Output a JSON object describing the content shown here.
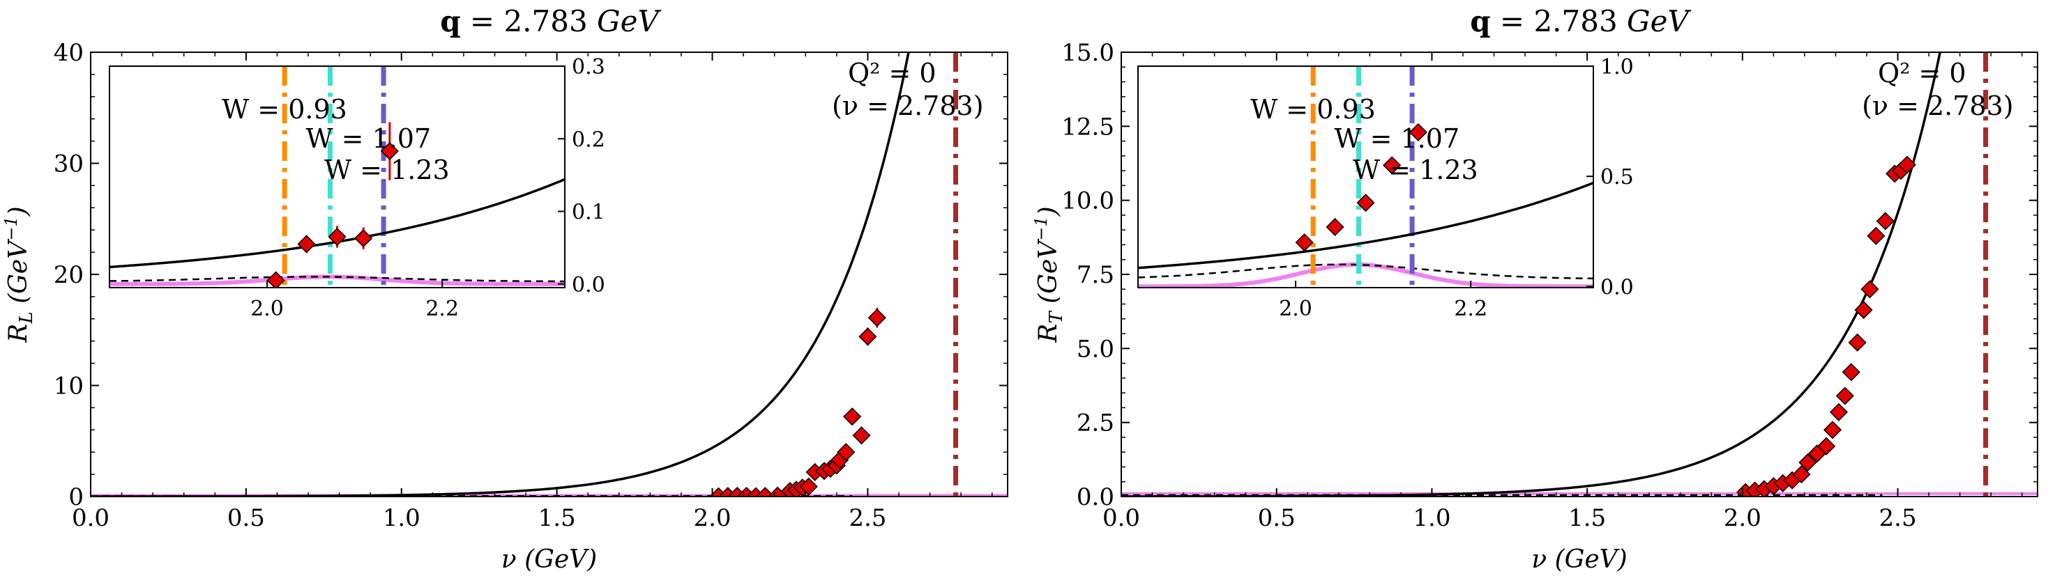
{
  "chart_data": [
    {
      "type": "scatter",
      "panel": "left",
      "title": "q = 2.783 GeV",
      "title_bold": "q",
      "title_rest": " = 2.783 ",
      "title_unit": "GeV",
      "xlabel": "ν (GeV)",
      "ylabel": "R_L (GeV⁻¹)",
      "ylabel_main": "R",
      "ylabel_sub": "L",
      "ylabel_unit": " (GeV",
      "ylabel_sup": "−1",
      "ylabel_close": ")",
      "xlim": [
        0.0,
        2.95
      ],
      "ylim": [
        0,
        40
      ],
      "xticks": [
        "0.0",
        "0.5",
        "1.0",
        "1.5",
        "2.0",
        "2.5"
      ],
      "xtick_values": [
        0.0,
        0.5,
        1.0,
        1.5,
        2.0,
        2.5
      ],
      "yticks": [
        "0",
        "10",
        "20",
        "30",
        "40"
      ],
      "ytick_values": [
        0,
        10,
        20,
        30,
        40
      ],
      "photon_point": {
        "label_line1": "Q² = 0",
        "label_line2": "(ν = 2.783)",
        "x": 2.783,
        "color": "#a52a2a"
      },
      "data_points": {
        "color": "#e00000",
        "x": [
          2.02,
          2.05,
          2.08,
          2.11,
          2.14,
          2.17,
          2.21,
          2.25,
          2.27,
          2.29,
          2.31,
          2.33,
          2.36,
          2.38,
          2.4,
          2.41,
          2.43,
          2.45,
          2.48,
          2.5,
          2.53
        ],
        "y": [
          0.02,
          0.05,
          0.06,
          0.06,
          0.03,
          0.05,
          0.08,
          0.5,
          0.6,
          0.8,
          0.9,
          2.2,
          2.3,
          2.5,
          2.8,
          3.3,
          4.0,
          7.2,
          5.5,
          14.4,
          16.1
        ],
        "err": [
          0.05,
          0.05,
          0.05,
          0.05,
          0.05,
          0.05,
          0.1,
          0.3,
          0.3,
          0.3,
          0.3,
          0.4,
          0.4,
          0.4,
          0.4,
          0.5,
          0.5,
          0.6,
          0.6,
          0.8,
          0.9
        ]
      },
      "curve_total": {
        "color": "#000000",
        "a": 0.004,
        "b": 3.5
      },
      "curve_magenta": {
        "color": "#ee82ee",
        "level": 0.1
      },
      "inset": {
        "xlim": [
          1.82,
          2.34
        ],
        "ylim": [
          -0.005,
          0.3
        ],
        "xticks": [
          "2.0",
          "2.2"
        ],
        "xtick_values": [
          2.0,
          2.2
        ],
        "yticks": [
          "0.0",
          "0.1",
          "0.2",
          "0.3"
        ],
        "ytick_values": [
          0.0,
          0.1,
          0.2,
          0.3
        ],
        "W_lines": [
          {
            "label": "W = 0.93",
            "x": 2.02,
            "color": "#ff8c00"
          },
          {
            "label": "W = 1.07",
            "x": 2.072,
            "color": "#40e0d0"
          },
          {
            "label": "W = 1.23",
            "x": 2.133,
            "color": "#6a5acd"
          }
        ],
        "points": {
          "x": [
            2.01,
            2.045,
            2.08,
            2.11,
            2.14
          ],
          "y": [
            0.005,
            0.055,
            0.065,
            0.063,
            0.183
          ],
          "err": [
            0.01,
            0.012,
            0.015,
            0.015,
            0.04
          ]
        },
        "dashed_peak": 0.01
      }
    },
    {
      "type": "scatter",
      "panel": "right",
      "title": "q = 2.783 GeV",
      "title_bold": "q",
      "title_rest": " = 2.783 ",
      "title_unit": "GeV",
      "xlabel": "ν (GeV)",
      "ylabel": "R_T (GeV⁻¹)",
      "ylabel_main": "R",
      "ylabel_sub": "T",
      "ylabel_unit": " (GeV",
      "ylabel_sup": "−1",
      "ylabel_close": ")",
      "xlim": [
        0.0,
        2.95
      ],
      "ylim": [
        0,
        15
      ],
      "xticks": [
        "0.0",
        "0.5",
        "1.0",
        "1.5",
        "2.0",
        "2.5"
      ],
      "xtick_values": [
        0.0,
        0.5,
        1.0,
        1.5,
        2.0,
        2.5
      ],
      "yticks": [
        "0.0",
        "2.5",
        "5.0",
        "7.5",
        "10.0",
        "12.5",
        "15.0"
      ],
      "ytick_values": [
        0,
        2.5,
        5.0,
        7.5,
        10.0,
        12.5,
        15.0
      ],
      "photon_point": {
        "label_line1": "Q² = 0",
        "label_line2": "(ν = 2.783)",
        "x": 2.783,
        "color": "#a52a2a"
      },
      "data_points": {
        "color": "#e00000",
        "x": [
          2.01,
          2.04,
          2.07,
          2.1,
          2.13,
          2.16,
          2.19,
          2.21,
          2.24,
          2.27,
          2.29,
          2.31,
          2.33,
          2.35,
          2.37,
          2.39,
          2.41,
          2.43,
          2.46,
          2.49,
          2.51,
          2.53
        ],
        "y": [
          0.15,
          0.2,
          0.25,
          0.35,
          0.45,
          0.55,
          0.75,
          1.15,
          1.45,
          1.7,
          2.25,
          2.85,
          3.4,
          4.2,
          5.2,
          6.3,
          7.0,
          8.8,
          9.3,
          10.9,
          11.0,
          11.2
        ],
        "err": [
          0.02,
          0.02,
          0.03,
          0.03,
          0.03,
          0.04,
          0.05,
          0.05,
          0.06,
          0.06,
          0.07,
          0.08,
          0.09,
          0.1,
          0.1,
          0.12,
          0.12,
          0.15,
          0.15,
          0.17,
          0.17,
          0.18
        ]
      },
      "curve_total": {
        "color": "#000000",
        "a": 0.0025,
        "b": 3.3
      },
      "curve_magenta": {
        "color": "#ee82ee",
        "level": 0.1
      },
      "inset": {
        "xlim": [
          1.82,
          2.34
        ],
        "ylim": [
          -0.005,
          1.0
        ],
        "xticks": [
          "2.0",
          "2.2"
        ],
        "xtick_values": [
          2.0,
          2.2
        ],
        "yticks": [
          "0.0",
          "0.5",
          "1.0"
        ],
        "ytick_values": [
          0.0,
          0.5,
          1.0
        ],
        "W_lines": [
          {
            "label": "W = 0.93",
            "x": 2.02,
            "color": "#ff8c00"
          },
          {
            "label": "W = 1.07",
            "x": 2.072,
            "color": "#40e0d0"
          },
          {
            "label": "W = 1.23",
            "x": 2.133,
            "color": "#6a5acd"
          }
        ],
        "points": {
          "x": [
            2.01,
            2.045,
            2.08,
            2.11,
            2.14
          ],
          "y": [
            0.2,
            0.27,
            0.38,
            0.55,
            0.7
          ],
          "err": [
            0.01,
            0.012,
            0.015,
            0.015,
            0.02
          ]
        },
        "dashed_peak": 0.1
      }
    }
  ]
}
